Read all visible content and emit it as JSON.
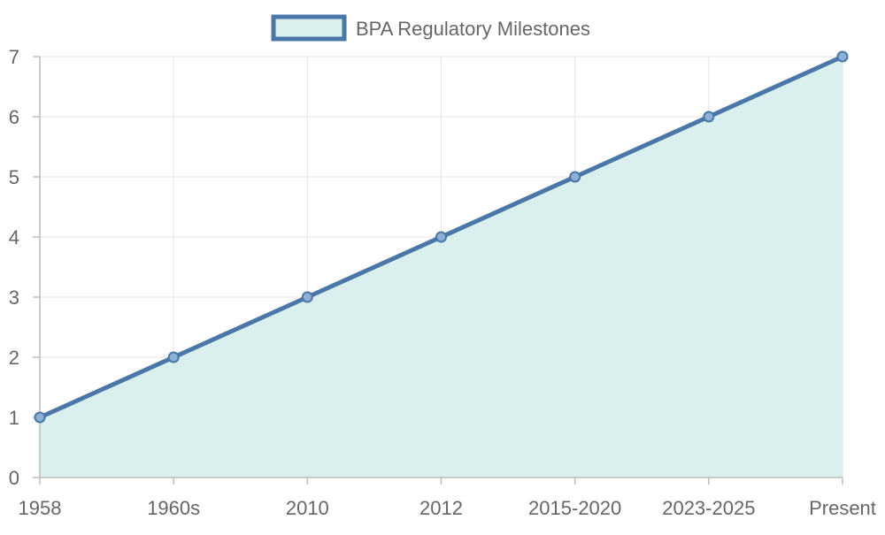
{
  "chart_data": {
    "type": "line",
    "categories": [
      "1958",
      "1960s",
      "2010",
      "2012",
      "2015-2020",
      "2023-2025",
      "Present"
    ],
    "series": [
      {
        "name": "BPA Regulatory Milestones",
        "values": [
          1,
          2,
          3,
          4,
          5,
          6,
          7
        ],
        "color": "#4a77a8",
        "fill_color": "#d9f0ee"
      }
    ],
    "y_ticks": [
      "0",
      "1",
      "2",
      "3",
      "4",
      "5",
      "6",
      "7"
    ],
    "ylim": [
      0,
      7
    ],
    "grid": true,
    "legend_position": "top-center",
    "filled_area": true
  }
}
